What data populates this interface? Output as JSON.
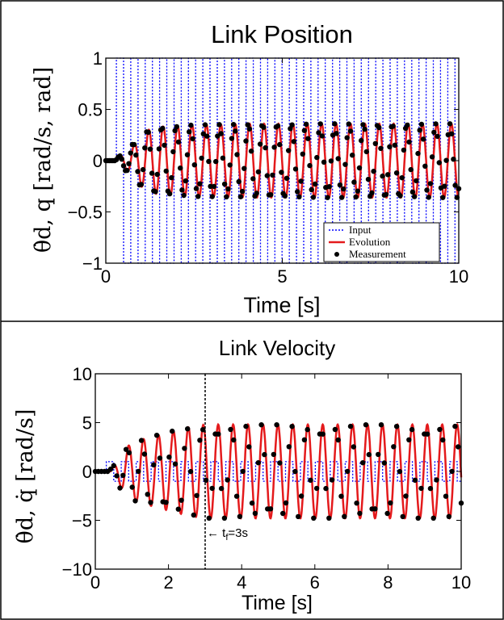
{
  "chart_data": [
    {
      "type": "line",
      "title": "Link Position",
      "xlabel": "Time [s]",
      "ylabel": "θ̇d, q [rad/s, rad]",
      "xlim": [
        0,
        10
      ],
      "ylim": [
        -1,
        1
      ],
      "xticks": [
        0,
        5,
        10
      ],
      "yticks": [
        1,
        0.5,
        0,
        -0.5,
        -1
      ],
      "ytick_labels": [
        "1",
        "0.5",
        "0",
        "−0.5",
        "−1"
      ],
      "grid": false,
      "legend_location": "bottom-right",
      "legend": [
        "Input",
        "Evolution",
        "Measurement"
      ],
      "series": [
        {
          "name": "Input",
          "style": "dotted",
          "color": "#0000ff",
          "description_points": {
            "start": 0.3,
            "frequency_hz": 2.45,
            "amplitude": 1
          }
        },
        {
          "name": "Evolution",
          "style": "solid",
          "color": "#e41a1c",
          "x": [
            0.0,
            0.3,
            0.5,
            0.6,
            0.7,
            0.9,
            1.0,
            1.2,
            1.5,
            2.0,
            2.5,
            3.0,
            4.0,
            5.0,
            6.0,
            7.0,
            8.0,
            9.0,
            10.0
          ],
          "envelope": [
            0.0,
            0.0,
            0.08,
            0.1,
            0.13,
            0.2,
            0.25,
            0.3,
            0.33,
            0.34,
            0.35,
            0.35,
            0.36,
            0.36,
            0.36,
            0.36,
            0.36,
            0.36,
            0.36
          ],
          "frequency_hz": 2.45
        },
        {
          "name": "Measurement",
          "style": "markers",
          "color": "#000000",
          "sample_count": 200,
          "x_range": [
            0,
            10
          ]
        }
      ]
    },
    {
      "type": "line",
      "title": "Link Velocity",
      "xlabel": "Time [s]",
      "ylabel": "θ̇d, q̇ [rad/s]",
      "xlim": [
        0,
        10
      ],
      "ylim": [
        -10,
        10
      ],
      "xticks": [
        0,
        2,
        4,
        6,
        8,
        10
      ],
      "yticks": [
        10,
        5,
        0,
        -5,
        -10
      ],
      "ytick_labels": [
        "10",
        "5",
        "0",
        "−5",
        "−10"
      ],
      "grid": false,
      "annotation": {
        "text": "t",
        "subscript": "f",
        "suffix": "=3s",
        "x": 3
      },
      "vline_x": 3,
      "series": [
        {
          "name": "Input",
          "style": "dotted",
          "color": "#0000ff",
          "amplitude": 1,
          "frequency_hz": 2.45
        },
        {
          "name": "Evolution",
          "style": "solid",
          "color": "#e41a1c",
          "x": [
            0.0,
            0.4,
            0.5,
            0.8,
            1.0,
            1.5,
            2.0,
            2.5,
            3.0,
            3.5,
            4.0,
            10.0
          ],
          "envelope": [
            0.0,
            0.0,
            0.5,
            2.2,
            3.0,
            3.5,
            4.0,
            4.5,
            4.8,
            4.8,
            4.8,
            4.8
          ],
          "frequency_hz": 2.45
        },
        {
          "name": "Measurement",
          "style": "markers",
          "color": "#000000",
          "sample_count": 120,
          "x_range": [
            0,
            10
          ]
        }
      ]
    }
  ]
}
